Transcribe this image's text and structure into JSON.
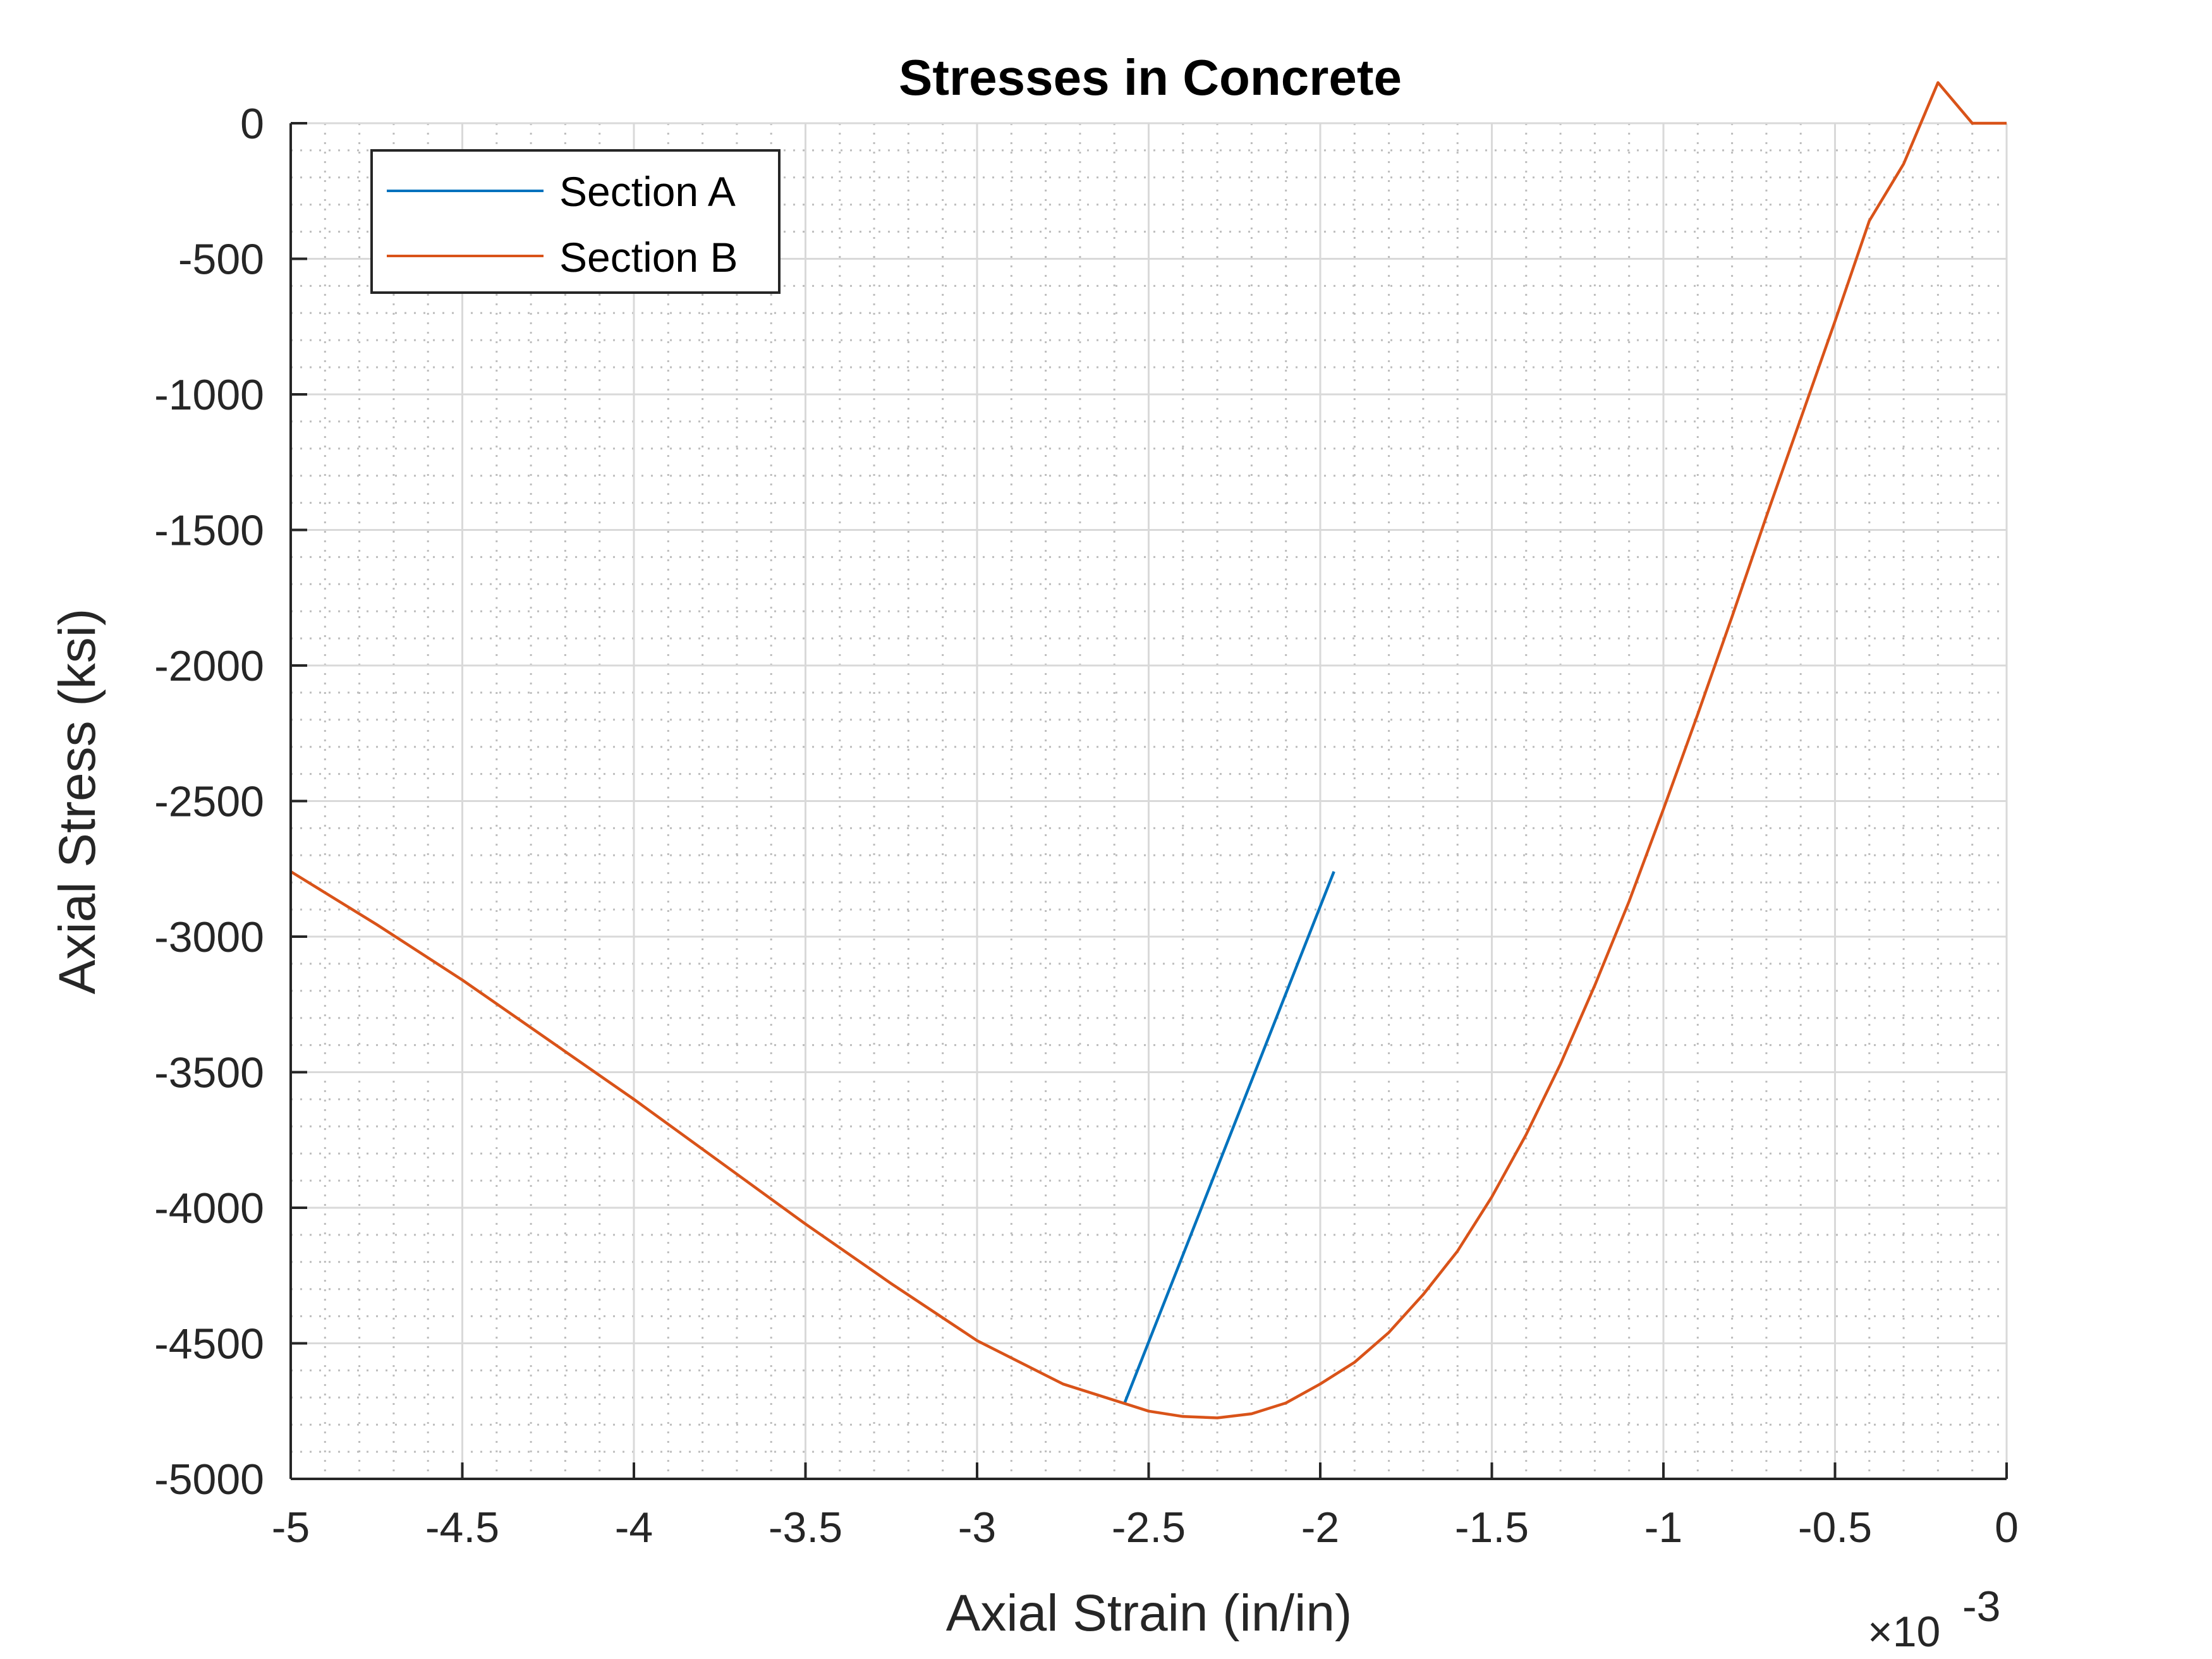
{
  "chart_data": {
    "type": "line",
    "title": "Stresses in Concrete",
    "xlabel": "Axial Strain (in/in)",
    "ylabel": "Axial Stress (ksi)",
    "x_multiplier_label": "×10",
    "x_multiplier_exponent": "-3",
    "xlim": [
      -5,
      0
    ],
    "ylim": [
      -5000,
      0
    ],
    "x_ticks": [
      -5,
      -4.5,
      -4,
      -3.5,
      -3,
      -2.5,
      -2,
      -1.5,
      -1,
      -0.5,
      0
    ],
    "x_tick_labels": [
      "-5",
      "-4.5",
      "-4",
      "-3.5",
      "-3",
      "-2.5",
      "-2",
      "-1.5",
      "-1",
      "-0.5",
      "0"
    ],
    "y_ticks": [
      0,
      -500,
      -1000,
      -1500,
      -2000,
      -2500,
      -3000,
      -3500,
      -4000,
      -4500,
      -5000
    ],
    "y_tick_labels": [
      "0",
      "-500",
      "-1000",
      "-1500",
      "-2000",
      "-2500",
      "-3000",
      "-3500",
      "-4000",
      "-4500",
      "-5000"
    ],
    "grid": true,
    "minor_grid": true,
    "legend_position": "top-left",
    "series": [
      {
        "name": "Section A",
        "color": "#0072BD",
        "x": [
          -2.57,
          -1.96
        ],
        "y": [
          -4720,
          -2760
        ]
      },
      {
        "name": "Section B",
        "color": "#D95319",
        "x": [
          -5.0,
          -4.75,
          -4.5,
          -4.25,
          -4.0,
          -3.75,
          -3.5,
          -3.25,
          -3.0,
          -2.75,
          -2.5,
          -2.4,
          -2.3,
          -2.2,
          -2.1,
          -2.0,
          -1.9,
          -1.8,
          -1.7,
          -1.6,
          -1.5,
          -1.4,
          -1.3,
          -1.2,
          -1.1,
          -1.0,
          -0.9,
          -0.8,
          -0.7,
          -0.6,
          -0.5,
          -0.4,
          -0.3,
          -0.2,
          -0.1,
          0.0
        ],
        "y": [
          -2760,
          -2955,
          -3160,
          -3380,
          -3600,
          -3830,
          -4060,
          -4280,
          -4490,
          -4650,
          -4750,
          -4770,
          -4775,
          -4760,
          -4720,
          -4650,
          -4570,
          -4460,
          -4320,
          -4160,
          -3960,
          -3730,
          -3470,
          -3180,
          -2870,
          -2530,
          -2180,
          -1820,
          -1450,
          -1090,
          -730,
          -360,
          -150,
          150,
          0,
          0
        ]
      }
    ]
  }
}
